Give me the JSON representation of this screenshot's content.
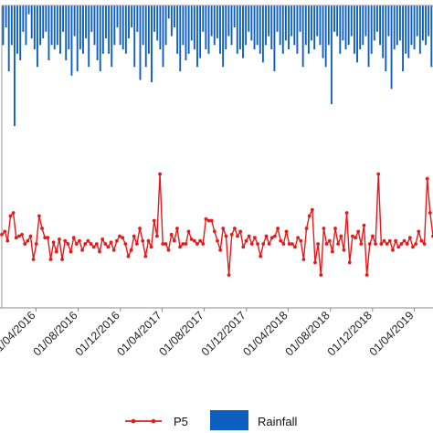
{
  "chart_data": {
    "type": "line",
    "title": "",
    "xlabel": "",
    "ylabel": "",
    "grid": false,
    "legend_position": "bottom",
    "x_tick_labels": [
      "01/04/2016",
      "01/08/2016",
      "01/12/2016",
      "01/04/2017",
      "01/08/2017",
      "01/12/2017",
      "01/04/2018",
      "01/08/2018",
      "01/12/2018",
      "01/04/2019"
    ],
    "x_range": [
      "2015-12-24",
      "2019-05-25"
    ],
    "series": [
      {
        "name": "P5",
        "kind": "line-with-markers",
        "color": "#e31a1c",
        "y_range": [
          0,
          100
        ],
        "values": [
          46,
          48,
          42,
          58,
          60,
          44,
          45,
          46,
          40,
          42,
          45,
          30,
          40,
          58,
          50,
          44,
          44,
          30,
          41,
          35,
          43,
          30,
          42,
          40,
          35,
          44,
          40,
          42,
          36,
          40,
          42,
          40,
          38,
          40,
          35,
          43,
          40,
          38,
          41,
          36,
          42,
          45,
          44,
          40,
          32,
          36,
          45,
          40,
          50,
          42,
          32,
          42,
          38,
          55,
          45,
          85,
          40,
          40,
          36,
          46,
          42,
          50,
          38,
          40,
          40,
          48,
          43,
          42,
          40,
          42,
          40,
          56,
          55,
          55,
          48,
          42,
          36,
          50,
          45,
          20,
          46,
          50,
          45,
          48,
          38,
          42,
          45,
          40,
          44,
          40,
          32,
          40,
          45,
          40,
          44,
          45,
          50,
          42,
          40,
          48,
          40,
          40,
          38,
          44,
          42,
          30,
          50,
          58,
          62,
          28,
          40,
          20,
          50,
          40,
          42,
          35,
          50,
          40,
          45,
          36,
          60,
          28,
          45,
          44,
          48,
          40,
          52,
          20,
          40,
          45,
          40,
          85,
          40,
          42,
          40,
          42,
          36,
          42,
          38,
          40,
          42,
          40,
          44,
          38,
          40,
          48,
          42,
          40,
          82,
          60,
          45
        ]
      },
      {
        "name": "Rainfall",
        "kind": "bar",
        "color": "#0d5fbf",
        "direction": "downward-from-top",
        "y_range": [
          0,
          100
        ],
        "values": [
          18,
          10,
          30,
          18,
          55,
          22,
          25,
          12,
          18,
          4,
          15,
          20,
          28,
          18,
          15,
          12,
          25,
          18,
          20,
          18,
          22,
          12,
          25,
          20,
          32,
          14,
          30,
          20,
          22,
          15,
          28,
          12,
          18,
          25,
          30,
          22,
          15,
          22,
          28,
          18,
          10,
          18,
          20,
          22,
          15,
          10,
          28,
          12,
          34,
          18,
          28,
          22,
          35,
          12,
          16,
          20,
          28,
          18,
          6,
          14,
          10,
          22,
          30,
          18,
          25,
          22,
          16,
          20,
          28,
          24,
          12,
          20,
          22,
          14,
          18,
          15,
          22,
          28,
          20,
          14,
          18,
          10,
          22,
          20,
          24,
          18,
          12,
          16,
          20,
          18,
          22,
          26,
          18,
          14,
          20,
          30,
          12,
          18,
          22,
          16,
          20,
          14,
          18,
          22,
          12,
          28,
          18,
          22,
          16,
          20,
          14,
          18,
          24,
          28,
          18,
          45,
          12,
          14,
          22,
          16,
          20,
          18,
          14,
          22,
          26,
          20,
          18,
          14,
          28,
          22,
          16,
          12,
          18,
          24,
          30,
          14,
          38,
          20,
          18,
          16,
          30,
          22,
          24,
          18,
          20,
          14,
          22,
          16,
          18,
          14,
          28
        ]
      }
    ]
  },
  "legend": {
    "p5_label": "P5",
    "rainfall_label": "Rainfall"
  }
}
